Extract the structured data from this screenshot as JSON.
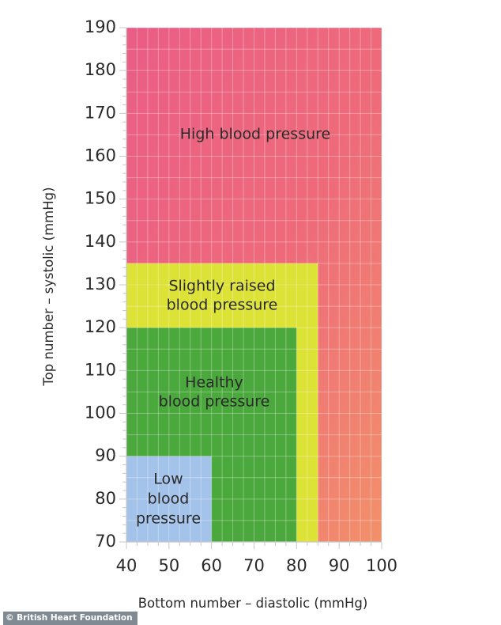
{
  "chart_data": {
    "type": "area",
    "title": "",
    "xlabel": "Bottom number – diastolic (mmHg)",
    "ylabel": "Top number – systolic (mmHg)",
    "xlim": [
      40,
      100
    ],
    "ylim": [
      70,
      190
    ],
    "xticks": [
      40,
      50,
      60,
      70,
      80,
      90,
      100
    ],
    "yticks": [
      70,
      80,
      90,
      100,
      110,
      120,
      130,
      140,
      150,
      160,
      170,
      180,
      190
    ],
    "grid": true,
    "zones": [
      {
        "label_lines": [
          "High blood pressure"
        ],
        "x": [
          40,
          100
        ],
        "y": [
          70,
          190
        ],
        "color": "#ee6680"
      },
      {
        "label_lines": [
          "Slightly raised",
          "blood pressure"
        ],
        "x": [
          40,
          85
        ],
        "y": [
          70,
          135
        ],
        "color": "#dde236"
      },
      {
        "label_lines": [
          "Healthy",
          "blood pressure"
        ],
        "x": [
          40,
          80
        ],
        "y": [
          70,
          120
        ],
        "color": "#4aa83c"
      },
      {
        "label_lines": [
          "Low",
          "blood",
          "pressure"
        ],
        "x": [
          40,
          60
        ],
        "y": [
          70,
          90
        ],
        "color": "#a4c3ea"
      }
    ]
  },
  "credit": "© British Heart Foundation"
}
